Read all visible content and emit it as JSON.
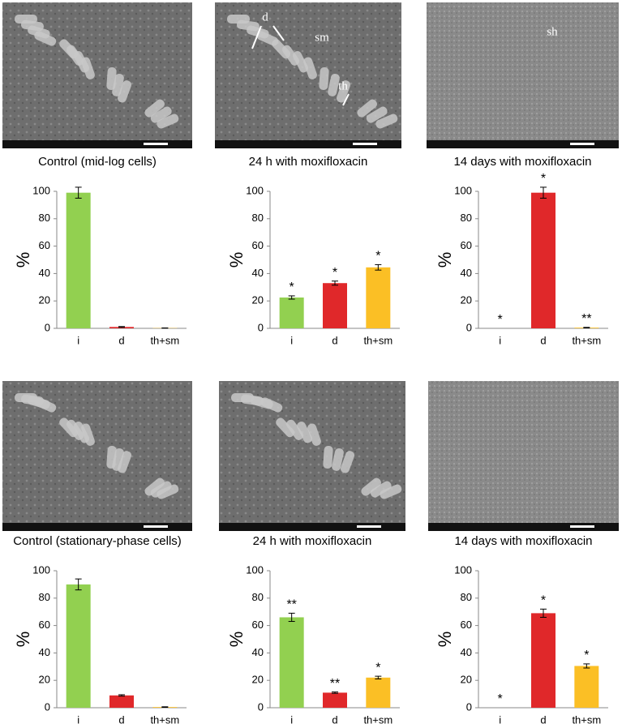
{
  "panels": [
    {
      "caption": "Control (mid-log cells)",
      "image_labels": []
    },
    {
      "caption": "24 h with moxifloxacin",
      "image_labels": [
        "d",
        "sm",
        "th"
      ]
    },
    {
      "caption": "14 days with moxifloxacin",
      "image_labels": [
        "sh"
      ]
    },
    {
      "caption": "Control (stationary-phase cells)",
      "image_labels": []
    },
    {
      "caption": "24 h with moxifloxacin",
      "image_labels": []
    },
    {
      "caption": "14 days with moxifloxacin",
      "image_labels": []
    }
  ],
  "chart_data": [
    {
      "type": "bar",
      "ylabel": "%",
      "categories": [
        "i",
        "d",
        "th+sm"
      ],
      "values": [
        99,
        1,
        0.2
      ],
      "errors": [
        4,
        0.3,
        0.1
      ],
      "annotations": [
        null,
        null,
        null
      ],
      "colors": [
        "#92d050",
        "#e0282a",
        "#fbbf25"
      ],
      "ylim": [
        0,
        100
      ],
      "yticks": [
        0,
        20,
        40,
        60,
        80,
        100
      ]
    },
    {
      "type": "bar",
      "ylabel": "%",
      "categories": [
        "i",
        "d",
        "th+sm"
      ],
      "values": [
        22.5,
        33,
        44.5
      ],
      "errors": [
        1.2,
        1.5,
        2
      ],
      "annotations": [
        "*",
        "*",
        "*"
      ],
      "colors": [
        "#92d050",
        "#e0282a",
        "#fbbf25"
      ],
      "ylim": [
        0,
        100
      ],
      "yticks": [
        0,
        20,
        40,
        60,
        80,
        100
      ]
    },
    {
      "type": "bar",
      "ylabel": "%",
      "categories": [
        "i",
        "d",
        "th+sm"
      ],
      "values": [
        0,
        99,
        0.5
      ],
      "errors": [
        0,
        4,
        0.2
      ],
      "annotations": [
        "*",
        "*",
        "**"
      ],
      "colors": [
        "#92d050",
        "#e0282a",
        "#fbbf25"
      ],
      "ylim": [
        0,
        100
      ],
      "yticks": [
        0,
        20,
        40,
        60,
        80,
        100
      ]
    },
    {
      "type": "bar",
      "ylabel": "%",
      "categories": [
        "i",
        "d",
        "th+sm"
      ],
      "values": [
        90,
        9,
        0.5
      ],
      "errors": [
        4,
        0.5,
        0.2
      ],
      "annotations": [
        null,
        null,
        null
      ],
      "colors": [
        "#92d050",
        "#e0282a",
        "#fbbf25"
      ],
      "ylim": [
        0,
        100
      ],
      "yticks": [
        0,
        20,
        40,
        60,
        80,
        100
      ]
    },
    {
      "type": "bar",
      "ylabel": "%",
      "categories": [
        "i",
        "d",
        "th+sm"
      ],
      "values": [
        66,
        11,
        22
      ],
      "errors": [
        3,
        0.5,
        1
      ],
      "annotations": [
        "**",
        "**",
        "*"
      ],
      "colors": [
        "#92d050",
        "#e0282a",
        "#fbbf25"
      ],
      "ylim": [
        0,
        100
      ],
      "yticks": [
        0,
        20,
        40,
        60,
        80,
        100
      ]
    },
    {
      "type": "bar",
      "ylabel": "%",
      "categories": [
        "i",
        "d",
        "th+sm"
      ],
      "values": [
        0,
        69,
        30.5
      ],
      "errors": [
        0,
        3,
        1.5
      ],
      "annotations": [
        "*",
        "*",
        "*"
      ],
      "colors": [
        "#92d050",
        "#e0282a",
        "#fbbf25"
      ],
      "ylim": [
        0,
        100
      ],
      "yticks": [
        0,
        20,
        40,
        60,
        80,
        100
      ]
    }
  ]
}
